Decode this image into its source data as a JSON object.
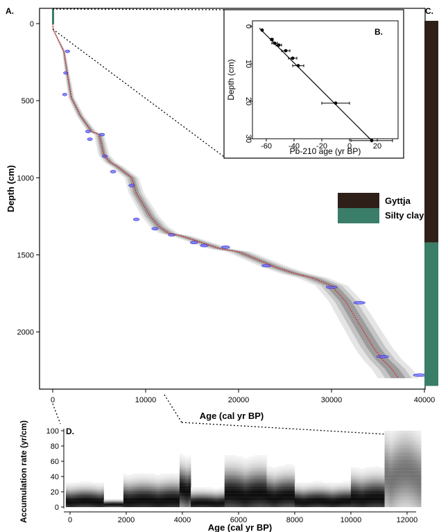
{
  "chart_data": [
    {
      "panel": "A.",
      "type": "line",
      "xlabel": "Age (cal yr BP)",
      "ylabel": "Depth (cm)",
      "xlim": [
        0,
        40000
      ],
      "ylim": [
        2350,
        -60
      ],
      "xticks": [
        "0",
        "10000",
        "20000",
        "30000",
        "40000"
      ],
      "yticks": [
        "0",
        "500",
        "1000",
        "1500",
        "2000"
      ],
      "series": [
        {
          "x": [
            0,
            60,
            1200,
            1500,
            2000,
            3000,
            4200,
            5000,
            5500,
            6200,
            7000,
            8500,
            9000,
            10500,
            11500,
            12500,
            14000,
            16000,
            18000,
            20000,
            22000,
            24000,
            26000,
            28000,
            30000,
            31500,
            32500,
            33500,
            34500,
            35500,
            36500,
            37200
          ],
          "y": [
            0,
            40,
            180,
            300,
            480,
            600,
            700,
            720,
            850,
            900,
            930,
            1000,
            1100,
            1250,
            1320,
            1360,
            1380,
            1420,
            1460,
            1480,
            1530,
            1580,
            1620,
            1650,
            1700,
            1800,
            1900,
            2000,
            2100,
            2180,
            2240,
            2300
          ]
        }
      ],
      "dates": [
        {
          "age": 1600,
          "depth": 180
        },
        {
          "age": 1400,
          "depth": 320
        },
        {
          "age": 1300,
          "depth": 460
        },
        {
          "age": 3800,
          "depth": 700
        },
        {
          "age": 5300,
          "depth": 720
        },
        {
          "age": 4000,
          "depth": 750
        },
        {
          "age": 5600,
          "depth": 860
        },
        {
          "age": 6500,
          "depth": 960
        },
        {
          "age": 8500,
          "depth": 1050
        },
        {
          "age": 9000,
          "depth": 1270
        },
        {
          "age": 11000,
          "depth": 1330
        },
        {
          "age": 12800,
          "depth": 1370
        },
        {
          "age": 15200,
          "depth": 1420
        },
        {
          "age": 16300,
          "depth": 1440
        },
        {
          "age": 18600,
          "depth": 1450
        },
        {
          "age": 23000,
          "depth": 1570
        },
        {
          "age": 30000,
          "depth": 1710
        },
        {
          "age": 33000,
          "depth": 1810
        },
        {
          "age": 35500,
          "depth": 2160
        },
        {
          "age": 39500,
          "depth": 2280
        }
      ]
    },
    {
      "panel": "B.",
      "type": "scatter",
      "xlabel": "Pb-210 age (yr BP)",
      "ylabel": "Depth (cm)",
      "xlim": [
        -70,
        30
      ],
      "ylim": [
        32,
        -1
      ],
      "xticks": [
        "-60",
        "-40",
        "-20",
        "0",
        "20"
      ],
      "yticks": [
        "0",
        "10",
        "20",
        "30"
      ],
      "points": [
        {
          "x": -63,
          "y": 1,
          "xerr": 0
        },
        {
          "x": -56,
          "y": 3.5,
          "xerr": 1
        },
        {
          "x": -54,
          "y": 4.5,
          "xerr": 2
        },
        {
          "x": -51,
          "y": 5,
          "xerr": 2
        },
        {
          "x": -46,
          "y": 6.5,
          "xerr": 3
        },
        {
          "x": -41,
          "y": 8.5,
          "xerr": 3
        },
        {
          "x": -37,
          "y": 10.5,
          "xerr": 4
        },
        {
          "x": -10,
          "y": 20.5,
          "xerr": 10
        },
        {
          "x": 16,
          "y": 30.5,
          "xerr": 15
        }
      ],
      "fit": {
        "x": [
          -65,
          16
        ],
        "y": [
          0.5,
          30.5
        ]
      }
    },
    {
      "panel": "C.",
      "type": "bar",
      "categories": [
        "Gyttja",
        "Silty clay"
      ],
      "depth_ranges": [
        [
          -60,
          1420
        ],
        [
          1420,
          2350
        ]
      ],
      "colors": [
        "#2e2019",
        "#3a7d68"
      ]
    },
    {
      "panel": "D.",
      "type": "heatmap",
      "xlabel": "Age (cal yr BP)",
      "ylabel": "Accumulation rate (yr/cm)",
      "xlim": [
        -300,
        12500
      ],
      "ylim": [
        0,
        100
      ],
      "xticks": [
        "0",
        "2000",
        "4000",
        "6000",
        "8000",
        "10000",
        "12000"
      ],
      "yticks": [
        "0",
        "20",
        "40",
        "60",
        "80",
        "100"
      ],
      "segments": [
        {
          "start": -150,
          "end": 1200,
          "mode": 6,
          "spread": 10
        },
        {
          "start": 1200,
          "end": 1900,
          "mode": 2,
          "spread": 3
        },
        {
          "start": 1900,
          "end": 3900,
          "mode": 7,
          "spread": 14
        },
        {
          "start": 3900,
          "end": 4300,
          "mode": 22,
          "spread": 18
        },
        {
          "start": 4300,
          "end": 5500,
          "mode": 4,
          "spread": 8
        },
        {
          "start": 5500,
          "end": 7000,
          "mode": 14,
          "spread": 20
        },
        {
          "start": 7000,
          "end": 8000,
          "mode": 12,
          "spread": 16
        },
        {
          "start": 8000,
          "end": 10000,
          "mode": 6,
          "spread": 10
        },
        {
          "start": 10000,
          "end": 11200,
          "mode": 10,
          "spread": 16
        },
        {
          "start": 11200,
          "end": 12500,
          "mode": 40,
          "spread": 30
        }
      ]
    }
  ],
  "legend": {
    "items": [
      "Gyttja",
      "Silty clay"
    ],
    "colors": [
      "#2e2019",
      "#3a7d68"
    ]
  }
}
